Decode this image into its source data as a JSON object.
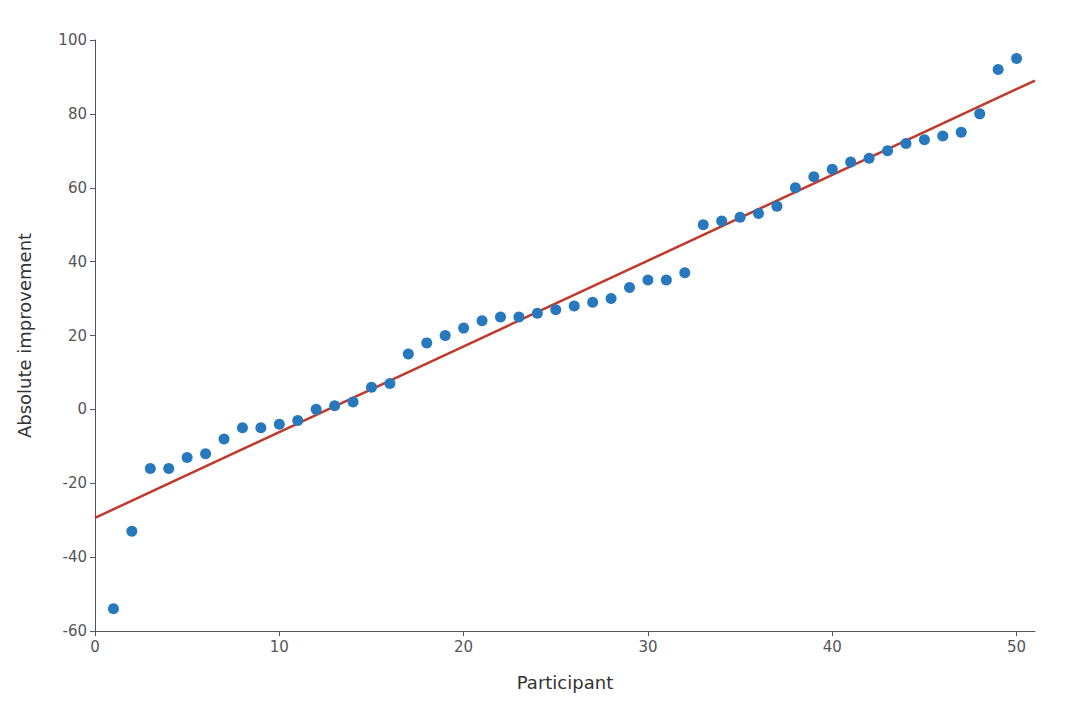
{
  "chart_data": {
    "type": "scatter",
    "x_label": "Participant",
    "y_label": "Absolute improvement",
    "series": [
      {
        "type": "scatter",
        "color": "#2878be",
        "x": [
          1,
          2,
          3,
          4,
          5,
          6,
          7,
          8,
          9,
          10,
          11,
          12,
          13,
          14,
          15,
          16,
          17,
          18,
          19,
          20,
          21,
          22,
          23,
          24,
          25,
          26,
          27,
          28,
          29,
          30,
          31,
          32,
          33,
          34,
          35,
          36,
          37,
          38,
          39,
          40,
          41,
          42,
          43,
          44,
          45,
          46,
          47,
          48,
          49,
          50
        ],
        "values": [
          -54,
          -33,
          -16,
          -16,
          -13,
          -12,
          -8,
          -5,
          -5,
          -4,
          -3,
          0,
          1,
          2,
          6,
          7,
          15,
          18,
          20,
          22,
          24,
          25,
          25,
          26,
          27,
          28,
          29,
          30,
          33,
          35,
          35,
          37,
          50,
          51,
          52,
          53,
          55,
          60,
          63,
          65,
          67,
          68,
          70,
          72,
          73,
          74,
          75,
          80,
          92,
          95
        ]
      },
      {
        "type": "line",
        "color": "#c0392b",
        "x": [
          0,
          51
        ],
        "values": [
          -29.373,
          89.013
        ]
      }
    ],
    "xlim": [
      0,
      51
    ],
    "xticks": [
      0,
      10,
      20,
      30,
      40,
      50
    ],
    "ylim": [
      -60,
      100
    ],
    "yticks": [
      -60,
      -40,
      -20,
      0,
      20,
      40,
      60,
      80,
      100
    ],
    "grid": false
  }
}
